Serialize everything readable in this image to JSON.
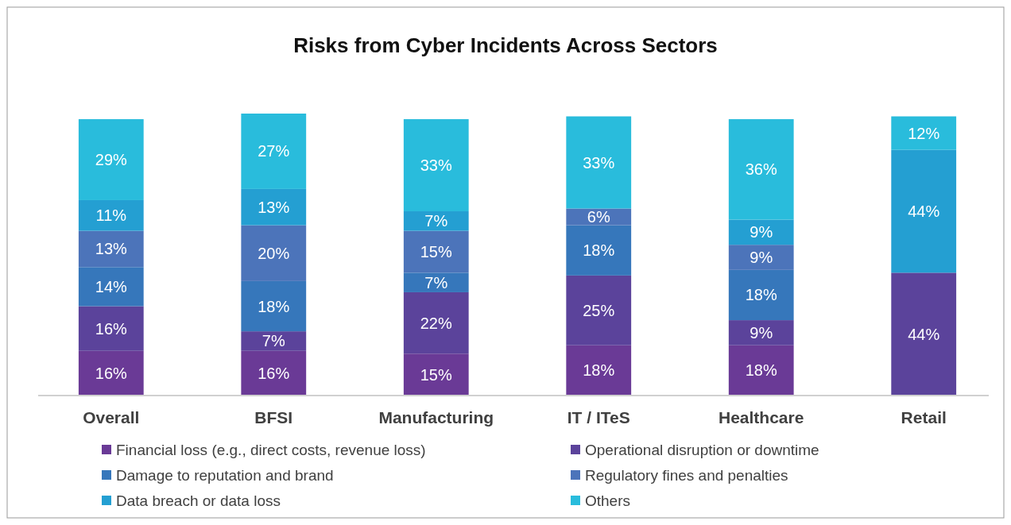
{
  "chart_data": {
    "type": "bar",
    "title": "Risks from Cyber Incidents Across Sectors",
    "stacked": true,
    "legend": "bottom",
    "tick_labels": "x",
    "categories": [
      "Overall",
      "BFSI",
      "Manufacturing",
      "IT / ITeS",
      "Healthcare",
      "Retail"
    ],
    "series": [
      {
        "name": "Financial loss (e.g., direct costs, revenue loss)",
        "color": "#6a3a96",
        "values": [
          16,
          16,
          15,
          18,
          18,
          null
        ],
        "value_labels": [
          "16%",
          "16%",
          "15%",
          "18%",
          "18%",
          null
        ]
      },
      {
        "name": "Operational disruption or downtime",
        "color": "#5b439b",
        "values": [
          16,
          7,
          22,
          25,
          9,
          44
        ],
        "value_labels": [
          "16%",
          "7%",
          "22%",
          "25%",
          "9%",
          "44%"
        ]
      },
      {
        "name": "Damage to reputation and brand",
        "color": "#3677bb",
        "values": [
          14,
          18,
          7,
          18,
          18,
          null
        ],
        "value_labels": [
          "14%",
          "18%",
          "7%",
          "18%",
          "18%",
          null
        ]
      },
      {
        "name": "Regulatory fines and penalties",
        "color": "#4c74ba",
        "values": [
          13,
          20,
          15,
          6,
          9,
          null
        ],
        "value_labels": [
          "13%",
          "20%",
          "15%",
          "6%",
          "9%",
          null
        ]
      },
      {
        "name": "Data breach or data loss",
        "color": "#249fd2",
        "values": [
          11,
          13,
          7,
          null,
          9,
          44
        ],
        "value_labels": [
          "11%",
          "13%",
          "7%",
          null,
          "9%",
          "44%"
        ]
      },
      {
        "name": "Others",
        "color": "#29bcdc",
        "values": [
          29,
          27,
          33,
          33,
          36,
          12
        ],
        "value_labels": [
          "29%",
          "27%",
          "33%",
          "33%",
          "36%",
          "12%"
        ]
      }
    ]
  }
}
